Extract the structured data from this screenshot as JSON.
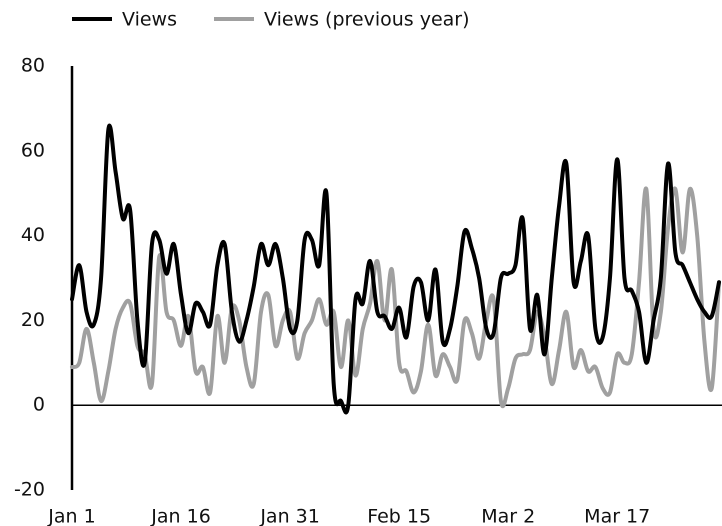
{
  "chart_data": {
    "type": "line",
    "categories": [
      "Jan 1",
      null,
      null,
      null,
      null,
      null,
      null,
      null,
      null,
      null,
      null,
      null,
      null,
      null,
      null,
      "Jan 16",
      null,
      null,
      null,
      null,
      null,
      null,
      null,
      null,
      null,
      null,
      null,
      null,
      null,
      null,
      "Jan 31",
      null,
      null,
      null,
      null,
      null,
      null,
      null,
      null,
      null,
      null,
      null,
      null,
      null,
      null,
      "Feb 15",
      null,
      null,
      null,
      null,
      null,
      null,
      null,
      null,
      null,
      null,
      null,
      null,
      null,
      null,
      "Mar 2",
      null,
      null,
      null,
      null,
      null,
      null,
      null,
      null,
      null,
      null,
      null,
      null,
      null,
      null,
      "Mar 17",
      null,
      null,
      null,
      null,
      null,
      null,
      null,
      null,
      null,
      null,
      null,
      null,
      null,
      null
    ],
    "series": [
      {
        "name": "Views",
        "color": "#000000",
        "values": [
          25,
          33,
          22,
          19,
          30,
          65,
          55,
          44,
          46,
          20,
          10,
          38,
          39,
          31,
          38,
          26,
          17,
          24,
          22,
          19,
          33,
          38,
          22,
          15,
          20,
          28,
          38,
          33,
          38,
          30,
          18,
          20,
          39,
          39,
          33,
          50,
          5,
          1,
          0,
          25,
          24,
          34,
          22,
          21,
          18,
          23,
          16,
          28,
          29,
          20,
          32,
          15,
          18,
          28,
          41,
          37,
          30,
          18,
          17,
          30,
          31,
          33,
          44,
          18,
          26,
          12,
          30,
          47,
          57,
          29,
          34,
          40,
          18,
          16,
          30,
          58,
          30,
          27,
          22,
          10,
          20,
          30,
          57,
          36,
          33,
          29,
          25,
          22,
          21,
          29
        ]
      },
      {
        "name": "Views (previous year)",
        "color": "#a0a0a0",
        "values": [
          9,
          10,
          18,
          10,
          1,
          8,
          18,
          23,
          24,
          14,
          12,
          5,
          35,
          22,
          20,
          14,
          21,
          8,
          9,
          3,
          21,
          10,
          23,
          20,
          9,
          5,
          22,
          26,
          14,
          20,
          22,
          11,
          17,
          20,
          25,
          19,
          22,
          9,
          20,
          7,
          18,
          24,
          34,
          20,
          32,
          10,
          8,
          3,
          8,
          19,
          7,
          12,
          9,
          6,
          20,
          17,
          11,
          20,
          25,
          1,
          4,
          11,
          12,
          13,
          22,
          16,
          5,
          13,
          22,
          9,
          13,
          8,
          9,
          4,
          3,
          12,
          10,
          12,
          29,
          51,
          18,
          22,
          42,
          51,
          36,
          51,
          40,
          15,
          4,
          29
        ]
      }
    ],
    "ylim": [
      -20,
      80
    ],
    "yticks": [
      -20,
      0,
      20,
      40,
      60,
      80
    ],
    "legend": "top-left"
  }
}
